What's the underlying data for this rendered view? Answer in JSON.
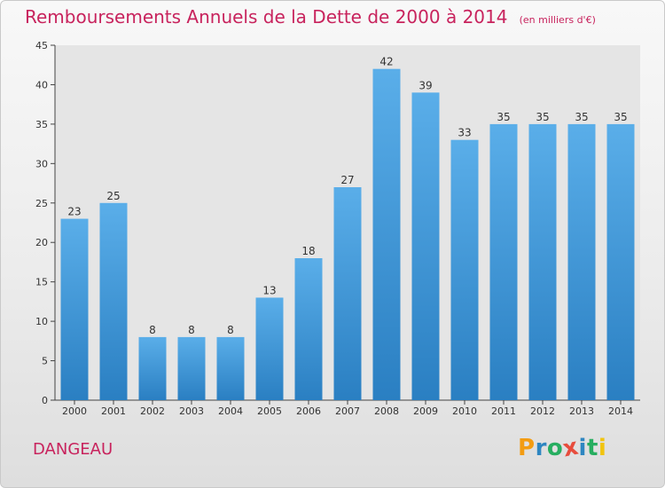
{
  "header": {
    "title": "Remboursements Annuels de la Dette de 2000 à 2014",
    "unit_note": "(en milliers d'€)"
  },
  "footer": {
    "place_name": "DANGEAU",
    "brand_letters": [
      "P",
      "r",
      "o",
      "x",
      "i",
      "t",
      "i"
    ]
  },
  "colors": {
    "title": "#c8235d",
    "bar_top": "#5aaee9",
    "bar_bottom": "#2a7fc2",
    "brand": [
      "#f39c12",
      "#2e86c1",
      "#27ae60",
      "#e74c3c",
      "#2e86c1",
      "#27ae60",
      "#f1c40f"
    ]
  },
  "chart_data": {
    "type": "bar",
    "title": "Remboursements Annuels de la Dette de 2000 à 2014",
    "subtitle": "(en milliers d'€)",
    "xlabel": "",
    "ylabel": "",
    "categories": [
      "2000",
      "2001",
      "2002",
      "2003",
      "2004",
      "2005",
      "2006",
      "2007",
      "2008",
      "2009",
      "2010",
      "2011",
      "2012",
      "2013",
      "2014"
    ],
    "values": [
      23,
      25,
      8,
      8,
      8,
      13,
      18,
      27,
      42,
      39,
      33,
      35,
      35,
      35,
      35
    ],
    "ylim": [
      0,
      45
    ],
    "yticks": [
      0,
      5,
      10,
      15,
      20,
      25,
      30,
      35,
      40,
      45
    ],
    "grid": false,
    "legend": "none"
  }
}
